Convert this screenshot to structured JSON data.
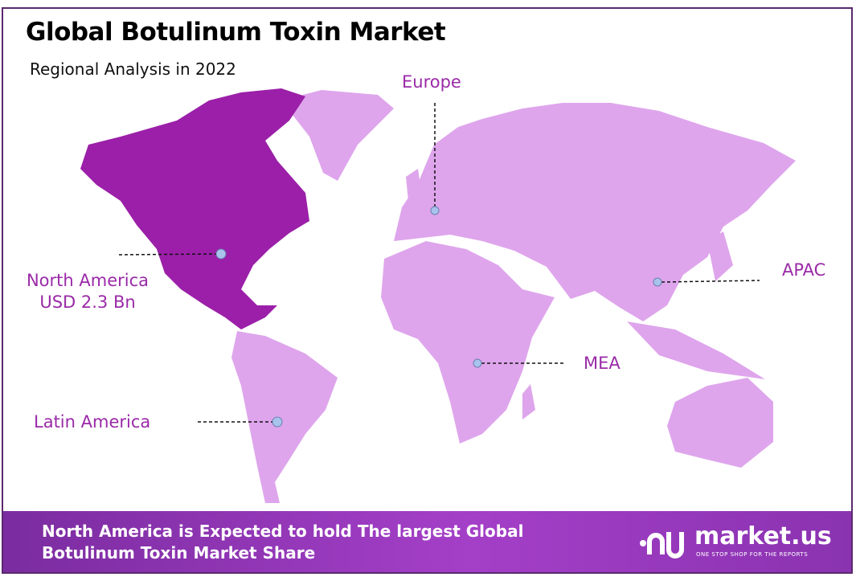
{
  "header": {
    "title": "Global Botulinum Toxin Market",
    "subtitle": "Regional Analysis in 2022"
  },
  "colors": {
    "highlight_region": "#9b1fa8",
    "other_regions": "#dea5ec",
    "label": "#9a2aa8",
    "banner": "#a43fc8",
    "marker": "#a9c4ec"
  },
  "regions": [
    {
      "name": "North America",
      "value_label": "USD 2.3 Bn",
      "highlighted": true
    },
    {
      "name": "Europe",
      "highlighted": false
    },
    {
      "name": "APAC",
      "highlighted": false
    },
    {
      "name": "MEA",
      "highlighted": false
    },
    {
      "name": "Latin America",
      "highlighted": false
    }
  ],
  "banner": {
    "line1": "North America is Expected to hold The largest Global",
    "line2": "Botulinum Toxin Market Share"
  },
  "logo": {
    "name": "market.us",
    "tagline": "ONE STOP SHOP FOR THE REPORTS"
  }
}
